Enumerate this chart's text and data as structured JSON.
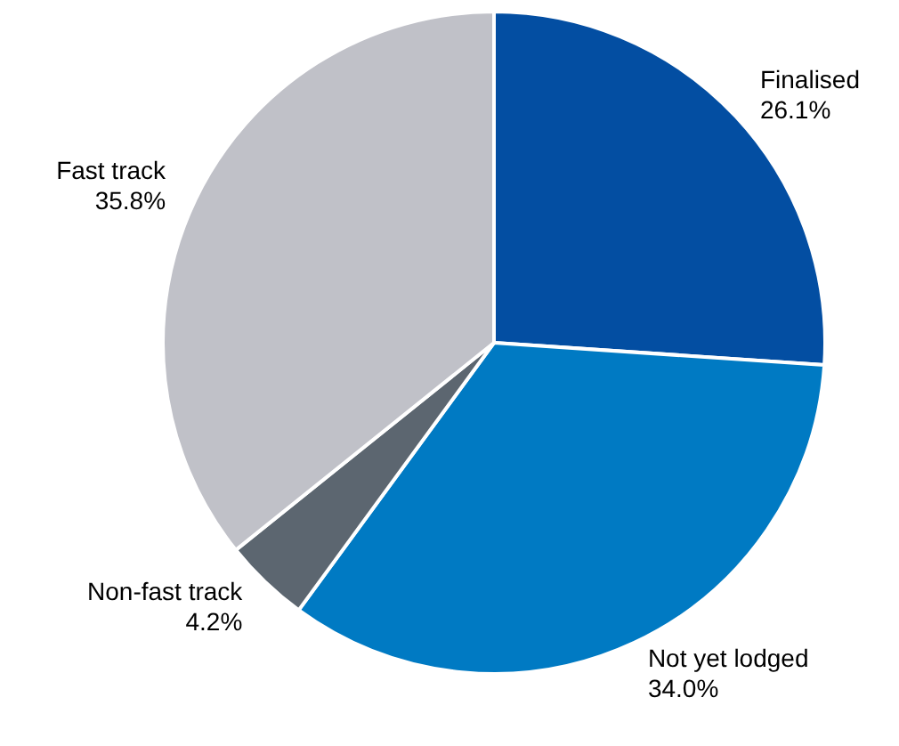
{
  "chart_data": {
    "type": "pie",
    "categories": [
      "Finalised",
      "Not yet lodged",
      "Non-fast track",
      "Fast track"
    ],
    "values": [
      26.1,
      34.0,
      4.2,
      35.8
    ],
    "value_labels": [
      "26.1%",
      "34.0%",
      "4.2%",
      "35.8%"
    ],
    "colors": [
      "#034ea2",
      "#007ac3",
      "#5c6670",
      "#c0c1c8"
    ]
  }
}
